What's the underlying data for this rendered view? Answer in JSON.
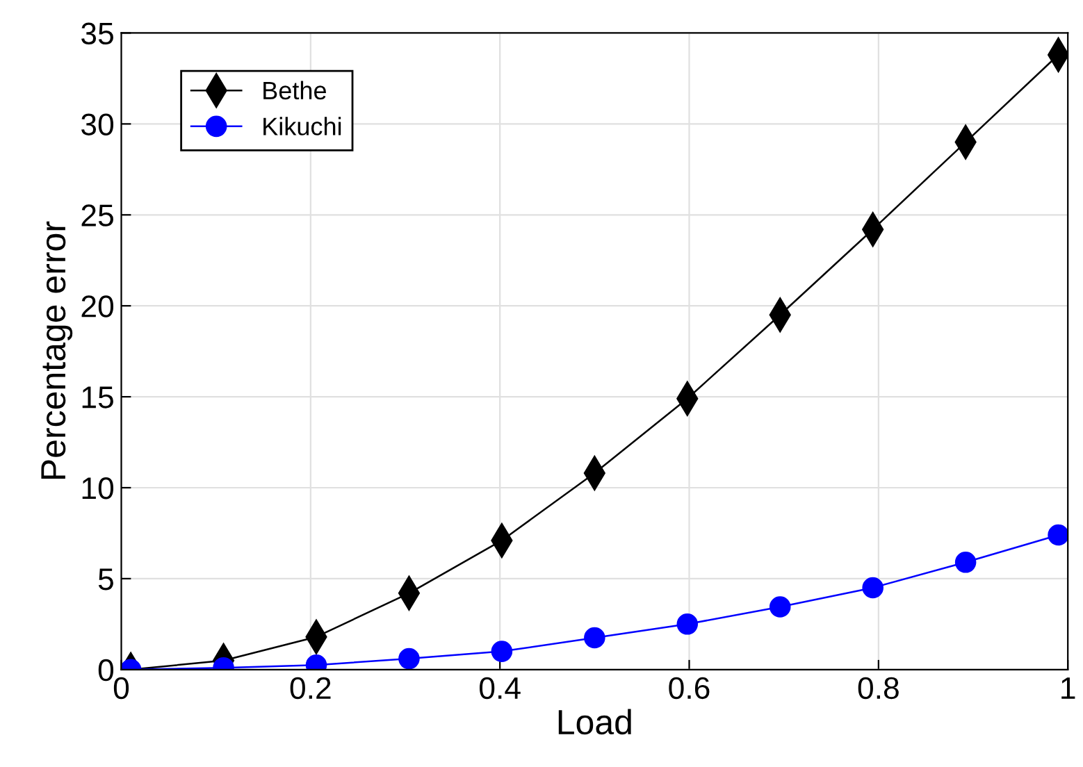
{
  "chart_data": {
    "type": "line",
    "xlabel": "Load",
    "ylabel": "Percentage error",
    "x": [
      0.01,
      0.108,
      0.206,
      0.304,
      0.402,
      0.5,
      0.598,
      0.696,
      0.794,
      0.892,
      0.99
    ],
    "series": [
      {
        "name": "Bethe",
        "color": "#000000",
        "marker": "diamond",
        "values": [
          0,
          0.5,
          1.8,
          4.2,
          7.1,
          10.8,
          14.9,
          19.5,
          24.2,
          29.0,
          33.8
        ]
      },
      {
        "name": "Kikuchi",
        "color": "#0000ff",
        "marker": "circle",
        "values": [
          0,
          0.1,
          0.25,
          0.6,
          1.0,
          1.75,
          2.5,
          3.45,
          4.5,
          5.9,
          7.4
        ]
      }
    ],
    "xlim": [
      0,
      1
    ],
    "ylim": [
      0,
      35
    ],
    "xticks": [
      0,
      0.2,
      0.4,
      0.6,
      0.8,
      1
    ],
    "yticks": [
      0,
      5,
      10,
      15,
      20,
      25,
      30,
      35
    ],
    "grid": true,
    "legend": "top left",
    "line_style": "solid"
  }
}
